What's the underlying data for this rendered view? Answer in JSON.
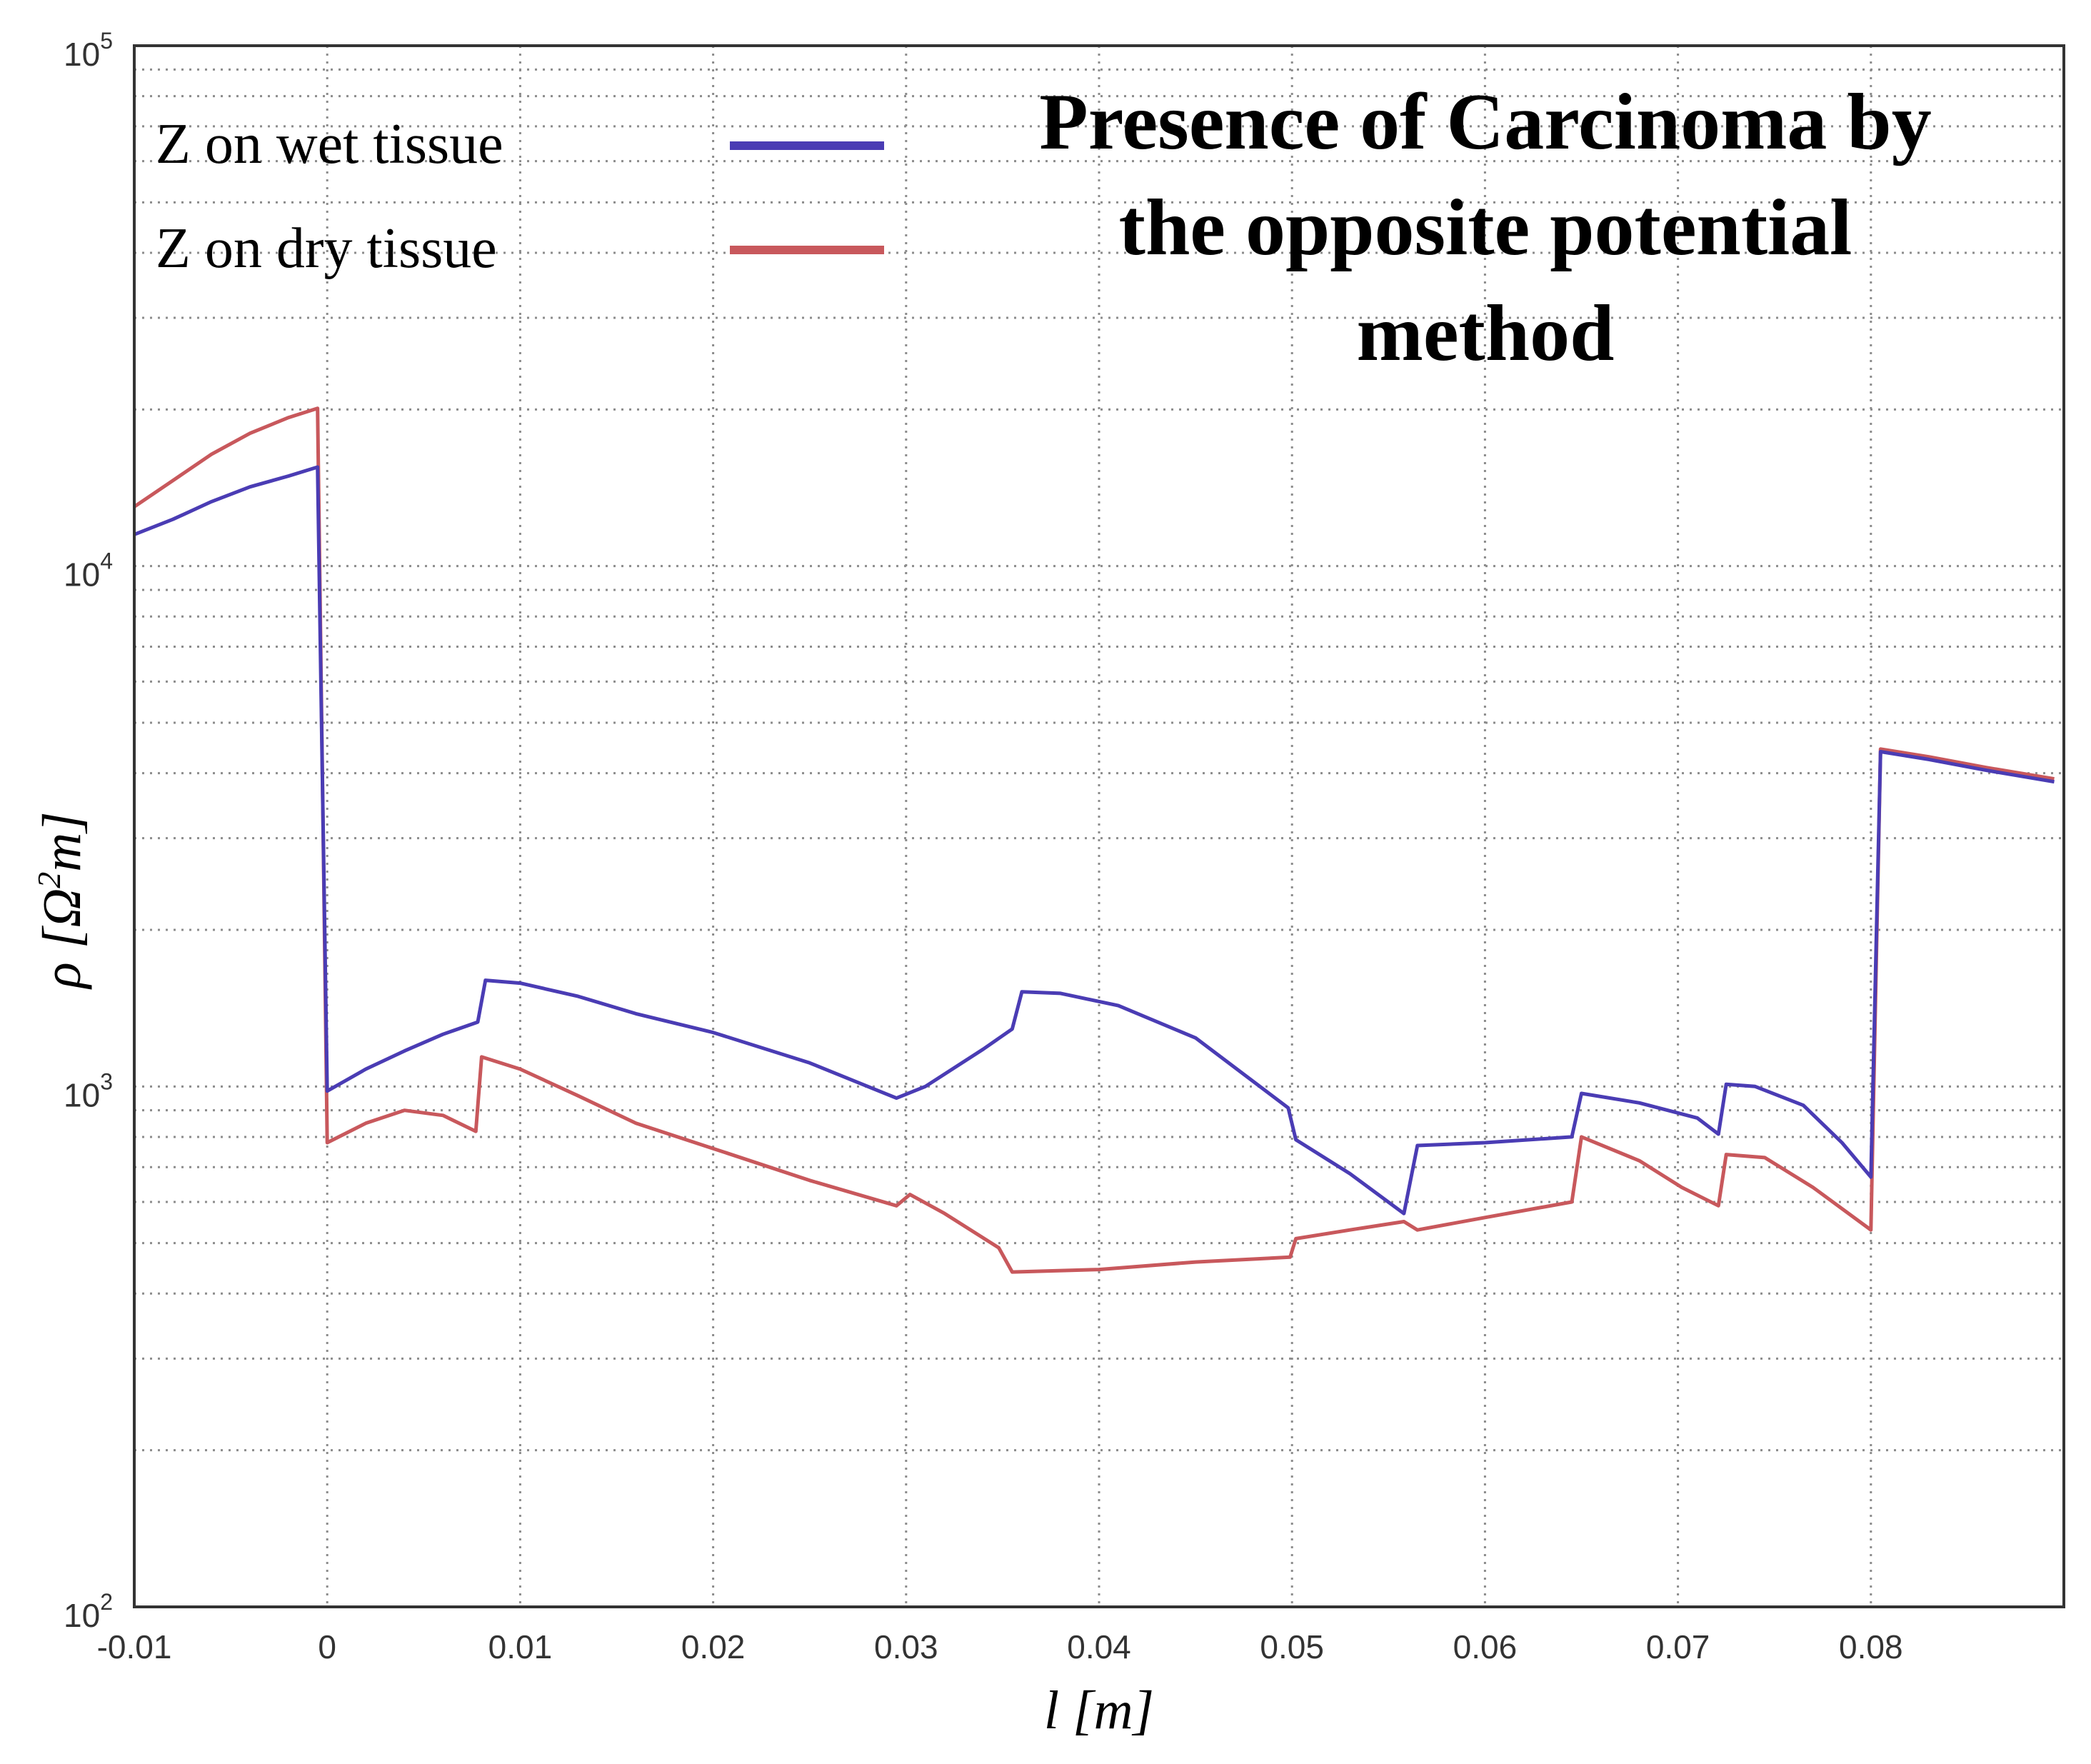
{
  "chart_data": {
    "type": "line",
    "title": "Presence of Carcinoma by the opposite potential method",
    "title_lines": [
      "Presence of Carcinoma by",
      "the opposite potential",
      "method"
    ],
    "xlabel": "l [m]",
    "ylabel_prefix": "ρ [Ω",
    "ylabel_sup": "2",
    "ylabel_suffix": "m]",
    "xlim": [
      -0.01,
      0.09
    ],
    "ylim": [
      100,
      100000
    ],
    "yscale": "log",
    "grid": true,
    "legend_position": "top-left",
    "x_ticks": [
      {
        "value": -0.01,
        "label": "-0.01"
      },
      {
        "value": 0,
        "label": "0"
      },
      {
        "value": 0.01,
        "label": "0.01"
      },
      {
        "value": 0.02,
        "label": "0.02"
      },
      {
        "value": 0.03,
        "label": "0.03"
      },
      {
        "value": 0.04,
        "label": "0.04"
      },
      {
        "value": 0.05,
        "label": "0.05"
      },
      {
        "value": 0.06,
        "label": "0.06"
      },
      {
        "value": 0.07,
        "label": "0.07"
      },
      {
        "value": 0.08,
        "label": "0.08"
      }
    ],
    "y_ticks": [
      {
        "value": 100,
        "base": "10",
        "exp": "2"
      },
      {
        "value": 1000,
        "base": "10",
        "exp": "3"
      },
      {
        "value": 10000,
        "base": "10",
        "exp": "4"
      },
      {
        "value": 100000,
        "base": "10",
        "exp": "5"
      }
    ],
    "series": [
      {
        "name": "Z on wet tissue",
        "color": "#4a3cb4",
        "points": [
          [
            -0.01,
            11500
          ],
          [
            -0.008,
            12300
          ],
          [
            -0.006,
            13300
          ],
          [
            -0.004,
            14200
          ],
          [
            -0.002,
            14900
          ],
          [
            -0.0005,
            15500
          ],
          [
            0.0,
            980
          ],
          [
            0.002,
            1080
          ],
          [
            0.004,
            1170
          ],
          [
            0.006,
            1260
          ],
          [
            0.0078,
            1330
          ],
          [
            0.0082,
            1600
          ],
          [
            0.01,
            1580
          ],
          [
            0.013,
            1490
          ],
          [
            0.016,
            1380
          ],
          [
            0.02,
            1270
          ],
          [
            0.025,
            1110
          ],
          [
            0.0295,
            950
          ],
          [
            0.031,
            1000
          ],
          [
            0.034,
            1180
          ],
          [
            0.0355,
            1290
          ],
          [
            0.036,
            1520
          ],
          [
            0.038,
            1510
          ],
          [
            0.041,
            1430
          ],
          [
            0.045,
            1240
          ],
          [
            0.0498,
            910
          ],
          [
            0.0502,
            790
          ],
          [
            0.053,
            680
          ],
          [
            0.0558,
            570
          ],
          [
            0.0565,
            770
          ],
          [
            0.06,
            780
          ],
          [
            0.0645,
            800
          ],
          [
            0.065,
            970
          ],
          [
            0.068,
            930
          ],
          [
            0.071,
            870
          ],
          [
            0.0721,
            810
          ],
          [
            0.0725,
            1010
          ],
          [
            0.074,
            1000
          ],
          [
            0.0765,
            920
          ],
          [
            0.0785,
            780
          ],
          [
            0.08,
            670
          ],
          [
            0.0805,
            4400
          ],
          [
            0.083,
            4250
          ],
          [
            0.086,
            4050
          ],
          [
            0.0895,
            3850
          ]
        ]
      },
      {
        "name": "Z on dry tissue",
        "color": "#c8585c",
        "points": [
          [
            -0.01,
            13000
          ],
          [
            -0.008,
            14600
          ],
          [
            -0.006,
            16400
          ],
          [
            -0.004,
            18000
          ],
          [
            -0.002,
            19300
          ],
          [
            -0.0005,
            20100
          ],
          [
            0.0,
            780
          ],
          [
            0.002,
            850
          ],
          [
            0.004,
            900
          ],
          [
            0.006,
            880
          ],
          [
            0.0077,
            820
          ],
          [
            0.008,
            1140
          ],
          [
            0.01,
            1080
          ],
          [
            0.013,
            960
          ],
          [
            0.016,
            850
          ],
          [
            0.02,
            760
          ],
          [
            0.025,
            660
          ],
          [
            0.0295,
            590
          ],
          [
            0.0302,
            620
          ],
          [
            0.032,
            570
          ],
          [
            0.0348,
            490
          ],
          [
            0.0355,
            440
          ],
          [
            0.04,
            445
          ],
          [
            0.045,
            460
          ],
          [
            0.0499,
            470
          ],
          [
            0.0502,
            510
          ],
          [
            0.053,
            530
          ],
          [
            0.0558,
            550
          ],
          [
            0.0565,
            530
          ],
          [
            0.06,
            560
          ],
          [
            0.0645,
            600
          ],
          [
            0.065,
            800
          ],
          [
            0.068,
            720
          ],
          [
            0.0702,
            640
          ],
          [
            0.0721,
            590
          ],
          [
            0.0725,
            740
          ],
          [
            0.0745,
            730
          ],
          [
            0.077,
            640
          ],
          [
            0.08,
            530
          ],
          [
            0.0805,
            4450
          ],
          [
            0.083,
            4300
          ],
          [
            0.086,
            4100
          ],
          [
            0.0895,
            3900
          ]
        ]
      }
    ]
  }
}
